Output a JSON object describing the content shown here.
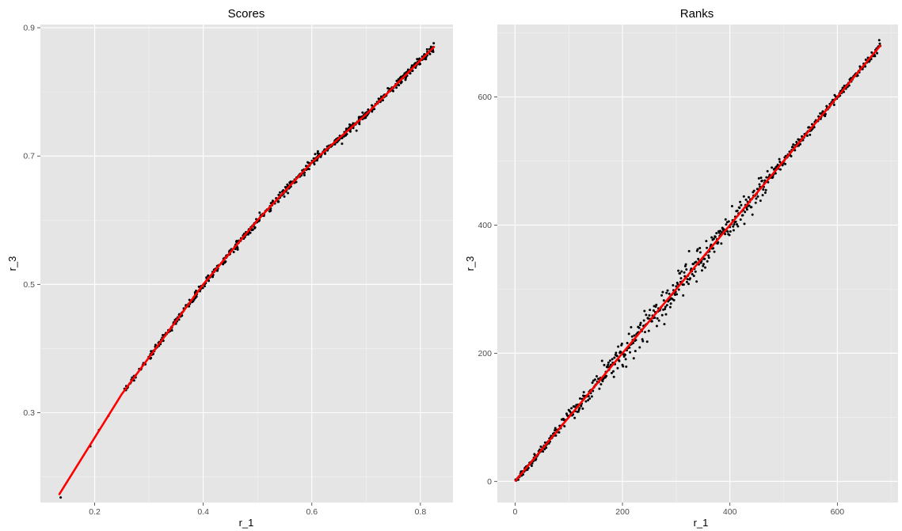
{
  "chart_data": [
    {
      "type": "scatter",
      "title": "Scores",
      "xlabel": "r_1",
      "ylabel": "r_3",
      "xlim": [
        0.1,
        0.86
      ],
      "ylim": [
        0.16,
        0.905
      ],
      "xticks": [
        0.2,
        0.4,
        0.6,
        0.8
      ],
      "yticks": [
        0.3,
        0.5,
        0.7,
        0.9
      ],
      "xtick_labels": [
        "0.2",
        "0.4",
        "0.6",
        "0.8"
      ],
      "ytick_labels": [
        "0.3",
        "0.5",
        "0.7",
        "0.9"
      ],
      "grid": true,
      "background": "#e5e5e5",
      "point_color": "#000000",
      "line_color": "#ff0000",
      "fit_line": [
        [
          0.135,
          0.173
        ],
        [
          0.25,
          0.329
        ],
        [
          0.4,
          0.5
        ],
        [
          0.5,
          0.6
        ],
        [
          0.6,
          0.69
        ],
        [
          0.7,
          0.765
        ],
        [
          0.825,
          0.87
        ]
      ],
      "points": {
        "count": 680,
        "x_range": [
          0.135,
          0.825
        ],
        "dense_from": 0.25,
        "noise_sd": 0.003
      }
    },
    {
      "type": "scatter",
      "title": "Ranks",
      "xlabel": "r_1",
      "ylabel": "r_3",
      "xlim": [
        -33,
        713
      ],
      "ylim": [
        -33,
        713
      ],
      "xticks": [
        0,
        200,
        400,
        600
      ],
      "yticks": [
        0,
        200,
        400,
        600
      ],
      "xtick_labels": [
        "0",
        "200",
        "400",
        "600"
      ],
      "ytick_labels": [
        "0",
        "200",
        "400",
        "600"
      ],
      "grid": true,
      "background": "#e5e5e5",
      "point_color": "#000000",
      "line_color": "#ff0000",
      "fit_line": [
        [
          1,
          1
        ],
        [
          200,
          200
        ],
        [
          400,
          400
        ],
        [
          680,
          680
        ]
      ],
      "points": {
        "count": 680,
        "x_range": [
          1,
          680
        ],
        "noise_sd": 9
      }
    }
  ]
}
